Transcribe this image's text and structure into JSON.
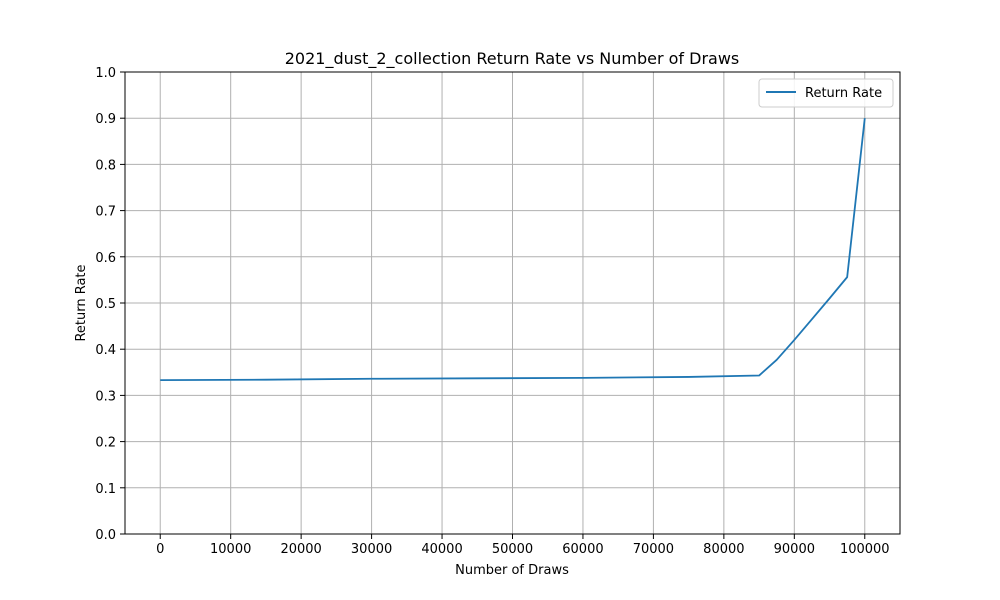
{
  "chart_data": {
    "type": "line",
    "title": "2021_dust_2_collection Return Rate vs Number of Draws",
    "xlabel": "Number of Draws",
    "ylabel": "Return Rate",
    "xlim": [
      -5000,
      105000
    ],
    "ylim": [
      0,
      1.0
    ],
    "xticks": [
      0,
      10000,
      20000,
      30000,
      40000,
      50000,
      60000,
      70000,
      80000,
      90000,
      100000
    ],
    "yticks": [
      0.0,
      0.1,
      0.2,
      0.3,
      0.4,
      0.5,
      0.6,
      0.7,
      0.8,
      0.9,
      1.0
    ],
    "ytick_labels": [
      "0.0",
      "0.1",
      "0.2",
      "0.3",
      "0.4",
      "0.5",
      "0.6",
      "0.7",
      "0.8",
      "0.9",
      "1.0"
    ],
    "grid": true,
    "legend_position": "top-right",
    "series": [
      {
        "name": "Return Rate",
        "color": "#1f77b4",
        "x": [
          0,
          15000,
          30000,
          45000,
          60000,
          75000,
          85000,
          87500,
          90000,
          92500,
          95000,
          97500,
          100000
        ],
        "y": [
          0.333,
          0.334,
          0.336,
          0.337,
          0.338,
          0.34,
          0.343,
          0.377,
          0.42,
          0.465,
          0.51,
          0.556,
          0.9
        ]
      }
    ]
  }
}
